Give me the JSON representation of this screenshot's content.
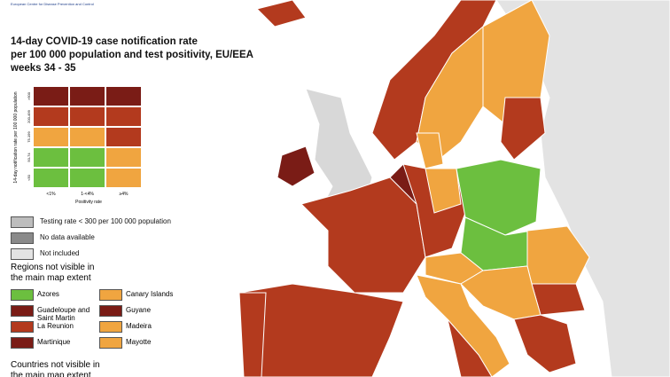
{
  "header": {
    "org": "European Centre for Disease Prevention and Control"
  },
  "title": [
    "14-day COVID-19 case notification rate",
    "per 100 000 population and test positivity, EU/EEA",
    "weeks 34 - 35"
  ],
  "legend_matrix": {
    "y_label": "14-day notification rate per 100 000 population",
    "x_label": "Positivity rate",
    "rows": [
      ">500",
      "200-499",
      "75-199",
      "50-74",
      "<50"
    ],
    "columns": [
      "<1%",
      "1-<4%",
      "≥4%"
    ]
  },
  "legend": [
    "Testing rate < 300 per 100 000 population",
    "No data available",
    "Not included"
  ],
  "regions": {
    "title": "Regions not visible in the main map extent",
    "items": [
      "Azores",
      "Canary Islands",
      "Guadeloupe and Saint Martin",
      "Guyane",
      "La Reunion",
      "Madeira",
      "Martinique",
      "Mayotte"
    ]
  },
  "countries": {
    "title": "Countries not visible in the main map extent"
  }
}
